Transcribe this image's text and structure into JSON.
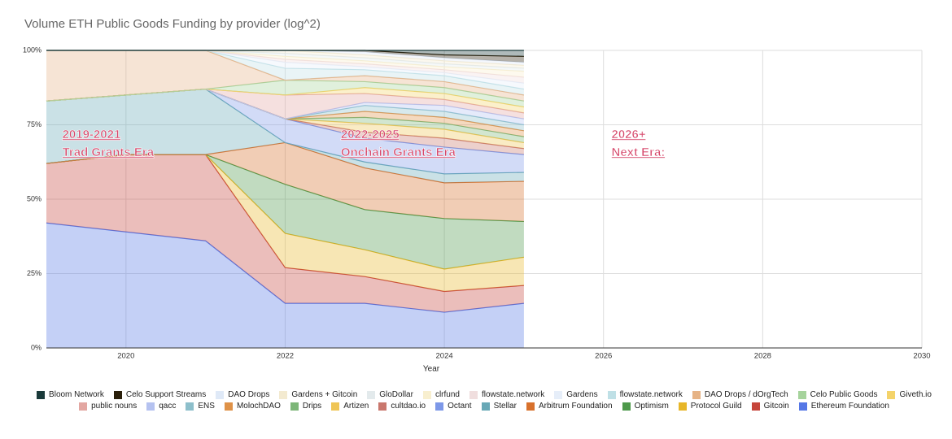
{
  "chart_data": {
    "type": "stacked-area-percent",
    "title": "Volume ETH Public Goods Funding by provider (log^2)",
    "xlabel": "Year",
    "x": [
      2019,
      2020,
      2021,
      2022,
      2023,
      2024,
      2025
    ],
    "xlim": [
      2019,
      2030
    ],
    "xticks": [
      2020,
      2022,
      2024,
      2026,
      2028,
      2030
    ],
    "ylim": [
      0,
      100
    ],
    "yticks": [
      {
        "value": 0,
        "label": "0%"
      },
      {
        "value": 25,
        "label": "25%"
      },
      {
        "value": 50,
        "label": "50%"
      },
      {
        "value": 75,
        "label": "75%"
      },
      {
        "value": 100,
        "label": "100%"
      }
    ],
    "grid": true,
    "legend": "bottom",
    "annotations": [
      {
        "lines": [
          "2019-2021",
          "Trad Grants Era"
        ],
        "x": 2019.2
      },
      {
        "lines": [
          "2022-2025",
          "Onchain Grants Era"
        ],
        "x": 2022.7
      },
      {
        "lines": [
          "2026+",
          "Next Era:"
        ],
        "x": 2026.1
      }
    ],
    "series": [
      {
        "name": "Bloom Network",
        "color": "#1a3a3a",
        "values": [
          0,
          0,
          0,
          0,
          0,
          1.5,
          2
        ]
      },
      {
        "name": "Celo Support Streams",
        "color": "#2a1f0a",
        "values": [
          0,
          0,
          0,
          0,
          0.5,
          1,
          2
        ]
      },
      {
        "name": "DAO Drops",
        "color": "#dfe9f7",
        "values": [
          0,
          0,
          0,
          0,
          1,
          1,
          1
        ]
      },
      {
        "name": "Gardens + Gitcoin",
        "color": "#f3ead0",
        "values": [
          0,
          0,
          0,
          1,
          1,
          1,
          1
        ]
      },
      {
        "name": "GloDollar",
        "color": "#e3eaec",
        "values": [
          0,
          0,
          0,
          1,
          1,
          1,
          1
        ]
      },
      {
        "name": "clrfund",
        "color": "#f8efcf",
        "values": [
          0,
          0,
          0,
          1,
          1,
          1,
          2
        ]
      },
      {
        "name": "flowstate.network",
        "color": "#f0dede",
        "values": [
          0,
          0,
          0,
          1,
          1,
          1,
          2
        ]
      },
      {
        "name": "Gardens",
        "color": "#e6eef9",
        "values": [
          0,
          0,
          0,
          2,
          1,
          1,
          2
        ]
      },
      {
        "name": "flowstate.network",
        "color": "#bfe0e6",
        "values": [
          0,
          0,
          0,
          4,
          2,
          2,
          2
        ]
      },
      {
        "name": "DAO Drops / dOrgTech",
        "color": "#e6b386",
        "values": [
          17,
          15,
          13,
          0,
          2,
          2,
          2
        ]
      },
      {
        "name": "Celo Public Goods",
        "color": "#a6d39c",
        "values": [
          0,
          0,
          0,
          5,
          2,
          2,
          2
        ]
      },
      {
        "name": "Giveth.io",
        "color": "#f4d36a",
        "values": [
          0,
          0,
          0,
          0,
          2,
          2,
          2
        ]
      },
      {
        "name": "public nouns",
        "color": "#e3a7a2",
        "values": [
          0,
          0,
          0,
          8,
          3,
          2,
          2
        ]
      },
      {
        "name": "qacc",
        "color": "#b5c2f0",
        "values": [
          0,
          0,
          0,
          0,
          1,
          2,
          2
        ]
      },
      {
        "name": "ENS",
        "color": "#8dbfcb",
        "values": [
          0,
          0,
          0,
          0,
          2,
          2,
          2
        ]
      },
      {
        "name": "MolochDAO",
        "color": "#df9248",
        "values": [
          0,
          0,
          0,
          0,
          2,
          2,
          2
        ]
      },
      {
        "name": "Drips",
        "color": "#7db678",
        "values": [
          0,
          0,
          0,
          0,
          2,
          2,
          2
        ]
      },
      {
        "name": "Artizen",
        "color": "#efc556",
        "values": [
          0,
          0,
          0,
          0,
          3,
          3,
          2
        ]
      },
      {
        "name": "cultdao.io",
        "color": "#c9776d",
        "values": [
          0,
          0,
          0,
          0,
          2,
          3,
          2
        ]
      },
      {
        "name": "Octant",
        "color": "#7d98e8",
        "values": [
          0,
          0,
          0,
          8,
          8,
          9,
          6
        ]
      },
      {
        "name": "Stellar",
        "color": "#68a8b6",
        "values": [
          21,
          20,
          22,
          0,
          2,
          3,
          3
        ]
      },
      {
        "name": "Arbitrum Foundation",
        "color": "#d8712c",
        "values": [
          0,
          0,
          0,
          14,
          14,
          12,
          13.5
        ]
      },
      {
        "name": "Optimism",
        "color": "#4e994b",
        "values": [
          0,
          0,
          0,
          16.5,
          13.5,
          17,
          12
        ]
      },
      {
        "name": "Protocol Guild",
        "color": "#e7b628",
        "values": [
          0,
          0,
          0,
          11.5,
          9,
          7.5,
          9.5
        ]
      },
      {
        "name": "Gitcoin",
        "color": "#c6453b",
        "values": [
          20,
          26,
          29,
          12,
          9,
          7,
          6
        ]
      },
      {
        "name": "Ethereum Foundation",
        "color": "#5577e6",
        "values": [
          42,
          39,
          36,
          15,
          15,
          12,
          15
        ]
      }
    ]
  }
}
